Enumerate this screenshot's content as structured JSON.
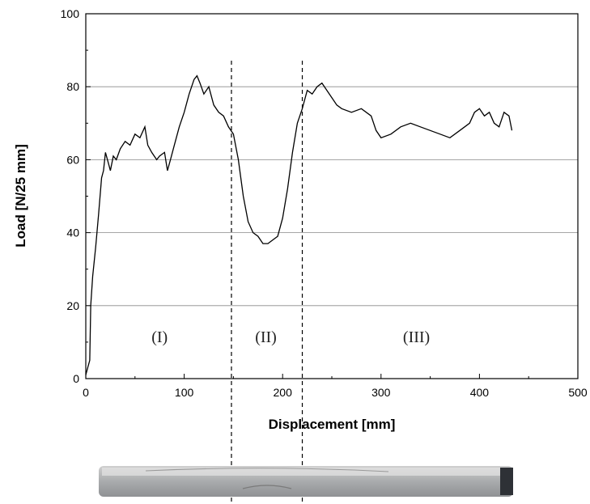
{
  "chart_data": {
    "type": "line",
    "title": "",
    "xlabel": "Displacement [mm]",
    "ylabel": "Load [N/25 mm]",
    "xlim": [
      0,
      500
    ],
    "ylim": [
      0,
      100
    ],
    "xticks": [
      0,
      100,
      200,
      300,
      400,
      500
    ],
    "yticks": [
      0,
      20,
      40,
      60,
      80,
      100
    ],
    "grid": "horizontal",
    "series": [
      {
        "color": "#000000",
        "x": [
          0,
          2,
          4,
          5,
          7,
          10,
          13,
          16,
          18,
          20,
          23,
          25,
          28,
          31,
          35,
          40,
          45,
          50,
          55,
          60,
          63,
          67,
          72,
          75,
          80,
          83,
          86,
          90,
          95,
          100,
          105,
          110,
          113,
          116,
          120,
          125,
          130,
          135,
          140,
          145,
          150,
          155,
          160,
          165,
          170,
          175,
          180,
          185,
          190,
          195,
          200,
          205,
          210,
          215,
          220,
          225,
          230,
          235,
          240,
          245,
          250,
          255,
          260,
          270,
          280,
          290,
          295,
          300,
          310,
          320,
          330,
          340,
          350,
          360,
          370,
          380,
          390,
          395,
          400,
          405,
          410,
          415,
          420,
          425,
          430,
          433
        ],
        "y": [
          1,
          3,
          5,
          20,
          28,
          36,
          45,
          55,
          57,
          62,
          59,
          57,
          61,
          60,
          63,
          65,
          64,
          67,
          66,
          69,
          64,
          62,
          60,
          61,
          62,
          57,
          60,
          64,
          69,
          73,
          78,
          82,
          83,
          81,
          78,
          80,
          75,
          73,
          72,
          69,
          67,
          60,
          50,
          43,
          40,
          39,
          37,
          37,
          38,
          39,
          44,
          52,
          62,
          70,
          74,
          79,
          78,
          80,
          81,
          79,
          77,
          75,
          74,
          73,
          74,
          72,
          68,
          66,
          67,
          69,
          70,
          69,
          68,
          67,
          66,
          68,
          70,
          73,
          74,
          72,
          73,
          70,
          69,
          73,
          72,
          68
        ]
      }
    ],
    "region_boundaries": [
      148,
      220
    ],
    "region_labels": [
      {
        "text": "(I)",
        "x": 75,
        "y": 10
      },
      {
        "text": "(II)",
        "x": 183,
        "y": 10
      },
      {
        "text": "(III)",
        "x": 336,
        "y": 10
      }
    ]
  }
}
